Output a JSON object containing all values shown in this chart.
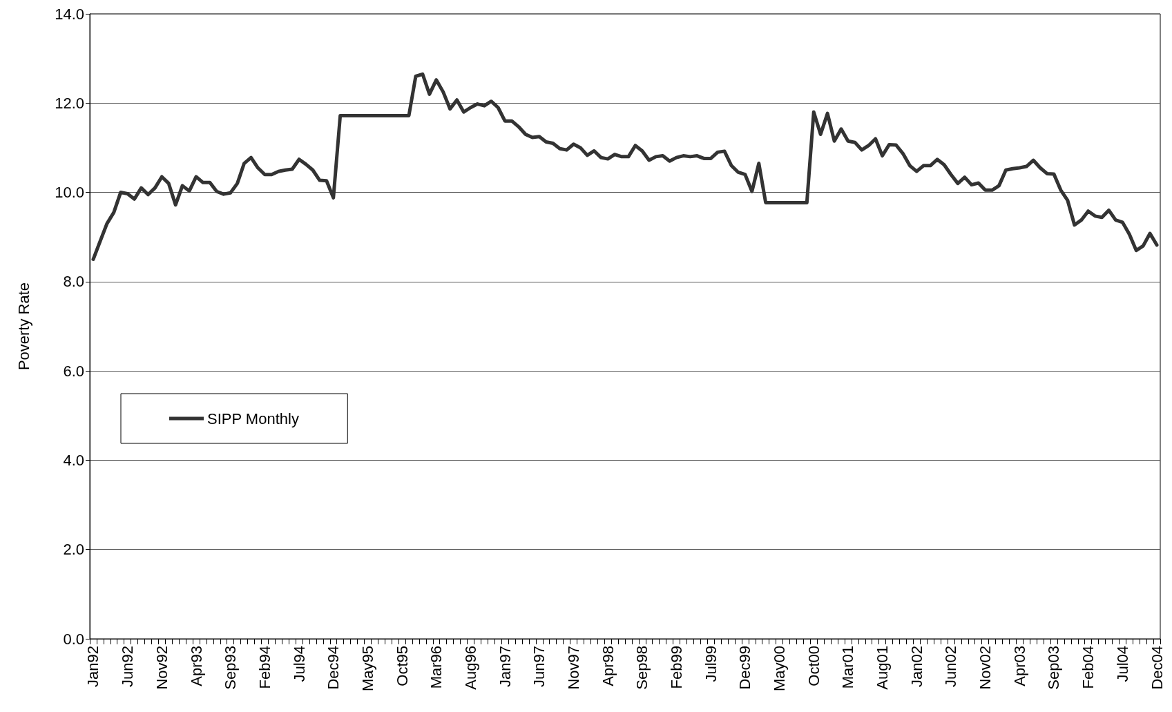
{
  "chart_data": {
    "type": "line",
    "ylabel": "Poverty Rate",
    "categories": [
      "Jan92",
      null,
      null,
      null,
      null,
      "Jun92",
      null,
      null,
      null,
      null,
      "Nov92",
      null,
      null,
      null,
      null,
      "Apr93",
      null,
      null,
      null,
      null,
      "Sep93",
      null,
      null,
      null,
      null,
      "Feb94",
      null,
      null,
      null,
      null,
      "Jul94",
      null,
      null,
      null,
      null,
      "Dec94",
      null,
      null,
      null,
      null,
      "May95",
      null,
      null,
      null,
      null,
      "Oct95",
      null,
      null,
      null,
      null,
      "Mar96",
      null,
      null,
      null,
      null,
      "Aug96",
      null,
      null,
      null,
      null,
      "Jan97",
      null,
      null,
      null,
      null,
      "Jun97",
      null,
      null,
      null,
      null,
      "Nov97",
      null,
      null,
      null,
      null,
      "Apr98",
      null,
      null,
      null,
      null,
      "Sep98",
      null,
      null,
      null,
      null,
      "Feb99",
      null,
      null,
      null,
      null,
      "Jul99",
      null,
      null,
      null,
      null,
      "Dec99",
      null,
      null,
      null,
      null,
      "May00",
      null,
      null,
      null,
      null,
      "Oct00",
      null,
      null,
      null,
      null,
      "Mar01",
      null,
      null,
      null,
      null,
      "Aug01",
      null,
      null,
      null,
      null,
      "Jan02",
      null,
      null,
      null,
      null,
      "Jun02",
      null,
      null,
      null,
      null,
      "Nov02",
      null,
      null,
      null,
      null,
      "Apr03",
      null,
      null,
      null,
      null,
      "Sep03",
      null,
      null,
      null,
      null,
      "Feb04",
      null,
      null,
      null,
      null,
      "Jul04",
      null,
      null,
      null,
      null,
      "Dec04"
    ],
    "series": [
      {
        "name": "SIPP Monthly",
        "color": "#333333",
        "values": [
          8.5,
          8.9,
          9.3,
          9.55,
          10.0,
          9.97,
          9.85,
          10.1,
          9.95,
          10.1,
          10.35,
          10.2,
          9.72,
          10.15,
          10.03,
          10.35,
          10.22,
          10.22,
          10.02,
          9.96,
          9.99,
          10.2,
          10.65,
          10.78,
          10.55,
          10.4,
          10.4,
          10.47,
          10.5,
          10.52,
          10.74,
          10.63,
          10.5,
          10.27,
          10.26,
          9.88,
          11.72,
          11.72,
          11.72,
          11.72,
          11.72,
          11.72,
          11.72,
          11.72,
          11.72,
          11.72,
          11.72,
          12.6,
          12.65,
          12.2,
          12.52,
          12.25,
          11.87,
          12.07,
          11.8,
          11.9,
          11.98,
          11.94,
          12.04,
          11.9,
          11.6,
          11.6,
          11.47,
          11.3,
          11.23,
          11.25,
          11.13,
          11.1,
          10.98,
          10.95,
          11.08,
          11.0,
          10.83,
          10.93,
          10.78,
          10.75,
          10.85,
          10.8,
          10.8,
          11.05,
          10.93,
          10.72,
          10.8,
          10.82,
          10.7,
          10.78,
          10.82,
          10.8,
          10.82,
          10.76,
          10.76,
          10.9,
          10.92,
          10.6,
          10.45,
          10.4,
          10.02,
          10.65,
          9.77,
          9.77,
          9.77,
          9.77,
          9.77,
          9.77,
          9.77,
          11.8,
          11.3,
          11.77,
          11.15,
          11.42,
          11.15,
          11.12,
          10.95,
          11.05,
          11.2,
          10.82,
          11.07,
          11.06,
          10.87,
          10.6,
          10.47,
          10.6,
          10.6,
          10.74,
          10.62,
          10.4,
          10.2,
          10.34,
          10.17,
          10.21,
          10.05,
          10.05,
          10.15,
          10.5,
          10.53,
          10.55,
          10.58,
          10.72,
          10.55,
          10.42,
          10.41,
          10.05,
          9.82,
          9.27,
          9.38,
          9.58,
          9.47,
          9.44,
          9.6,
          9.38,
          9.33,
          9.06,
          8.7,
          8.8,
          9.08,
          8.82
        ]
      }
    ],
    "ylim": [
      0,
      14
    ],
    "yticks": [
      {
        "value": 0,
        "label": "0.0"
      },
      {
        "value": 2,
        "label": "2.0"
      },
      {
        "value": 4,
        "label": "4.0"
      },
      {
        "value": 6,
        "label": "6.0"
      },
      {
        "value": 8,
        "label": "8.0"
      },
      {
        "value": 10,
        "label": "10.0"
      },
      {
        "value": 12,
        "label": "12.0"
      },
      {
        "value": 14,
        "label": "14.0"
      }
    ],
    "grid": "y",
    "legend": "left",
    "marker": "none",
    "line_style": "solid"
  }
}
